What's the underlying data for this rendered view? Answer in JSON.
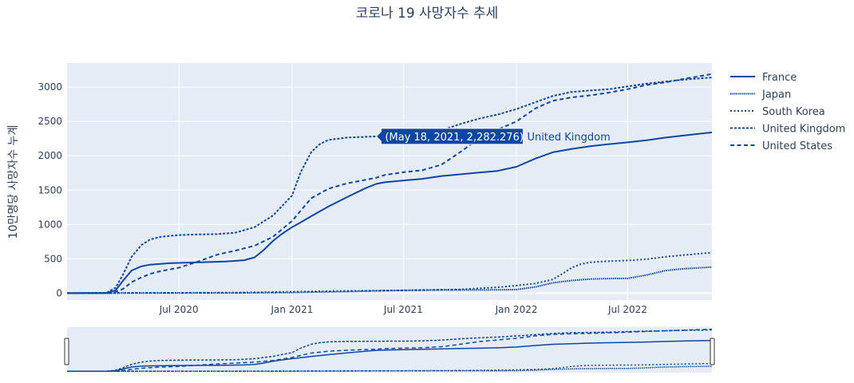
{
  "chart_data": {
    "type": "line",
    "title": "코로나 19 사망자수 추세",
    "ylabel": "10만명당 사망자수 누계",
    "xlabel": "",
    "xlim": [
      "2020-01-01",
      "2022-11-15"
    ],
    "ylim": [
      -100,
      3350
    ],
    "x_ticks": [
      {
        "date": "2020-07-01",
        "label": "Jul 2020"
      },
      {
        "date": "2021-01-01",
        "label": "Jan 2021"
      },
      {
        "date": "2021-07-01",
        "label": "Jul 2021"
      },
      {
        "date": "2022-01-01",
        "label": "Jan 2022"
      },
      {
        "date": "2022-07-01",
        "label": "Jul 2022"
      }
    ],
    "y_ticks": [
      0,
      500,
      1000,
      1500,
      2000,
      2500,
      3000
    ],
    "grid": true,
    "legend_position": "right",
    "line_color": "#0d47a1",
    "plot_bg": "#e5ecf6",
    "series": [
      {
        "name": "France",
        "dash": "solid",
        "points": [
          [
            "2020-01-01",
            0
          ],
          [
            "2020-03-05",
            2
          ],
          [
            "2020-03-20",
            40
          ],
          [
            "2020-04-01",
            180
          ],
          [
            "2020-04-15",
            330
          ],
          [
            "2020-05-01",
            390
          ],
          [
            "2020-05-15",
            415
          ],
          [
            "2020-06-15",
            435
          ],
          [
            "2020-08-01",
            448
          ],
          [
            "2020-09-15",
            460
          ],
          [
            "2020-10-15",
            480
          ],
          [
            "2020-11-01",
            520
          ],
          [
            "2020-11-15",
            620
          ],
          [
            "2020-12-01",
            760
          ],
          [
            "2020-12-15",
            860
          ],
          [
            "2021-01-01",
            960
          ],
          [
            "2021-01-15",
            1030
          ],
          [
            "2021-02-01",
            1120
          ],
          [
            "2021-03-01",
            1260
          ],
          [
            "2021-04-01",
            1400
          ],
          [
            "2021-05-01",
            1530
          ],
          [
            "2021-05-18",
            1590
          ],
          [
            "2021-06-01",
            1615
          ],
          [
            "2021-07-01",
            1640
          ],
          [
            "2021-08-01",
            1665
          ],
          [
            "2021-09-01",
            1705
          ],
          [
            "2021-10-01",
            1730
          ],
          [
            "2021-11-01",
            1755
          ],
          [
            "2021-12-01",
            1780
          ],
          [
            "2022-01-01",
            1840
          ],
          [
            "2022-02-01",
            1960
          ],
          [
            "2022-03-01",
            2050
          ],
          [
            "2022-04-01",
            2100
          ],
          [
            "2022-05-01",
            2140
          ],
          [
            "2022-06-01",
            2170
          ],
          [
            "2022-07-01",
            2195
          ],
          [
            "2022-08-01",
            2225
          ],
          [
            "2022-09-01",
            2265
          ],
          [
            "2022-10-01",
            2295
          ],
          [
            "2022-11-15",
            2340
          ]
        ]
      },
      {
        "name": "Japan",
        "dash": "dense-dot",
        "points": [
          [
            "2020-01-01",
            0
          ],
          [
            "2020-04-01",
            1
          ],
          [
            "2020-07-01",
            2
          ],
          [
            "2020-10-01",
            3
          ],
          [
            "2021-01-01",
            8
          ],
          [
            "2021-02-01",
            15
          ],
          [
            "2021-04-01",
            22
          ],
          [
            "2021-05-18",
            34
          ],
          [
            "2021-07-01",
            40
          ],
          [
            "2021-09-01",
            46
          ],
          [
            "2021-12-01",
            48
          ],
          [
            "2022-01-01",
            52
          ],
          [
            "2022-02-01",
            90
          ],
          [
            "2022-03-01",
            150
          ],
          [
            "2022-04-01",
            185
          ],
          [
            "2022-05-01",
            205
          ],
          [
            "2022-06-01",
            212
          ],
          [
            "2022-07-01",
            215
          ],
          [
            "2022-08-01",
            265
          ],
          [
            "2022-09-01",
            330
          ],
          [
            "2022-10-01",
            355
          ],
          [
            "2022-11-15",
            380
          ]
        ]
      },
      {
        "name": "South Korea",
        "dash": "dot",
        "points": [
          [
            "2020-01-01",
            0
          ],
          [
            "2020-04-01",
            3
          ],
          [
            "2020-07-01",
            5
          ],
          [
            "2020-10-01",
            8
          ],
          [
            "2021-01-01",
            20
          ],
          [
            "2021-04-01",
            33
          ],
          [
            "2021-07-01",
            40
          ],
          [
            "2021-10-01",
            55
          ],
          [
            "2021-12-01",
            85
          ],
          [
            "2022-01-01",
            110
          ],
          [
            "2022-02-01",
            140
          ],
          [
            "2022-03-01",
            200
          ],
          [
            "2022-03-20",
            300
          ],
          [
            "2022-04-01",
            370
          ],
          [
            "2022-04-15",
            420
          ],
          [
            "2022-05-01",
            450
          ],
          [
            "2022-06-01",
            466
          ],
          [
            "2022-07-01",
            476
          ],
          [
            "2022-08-01",
            495
          ],
          [
            "2022-09-01",
            530
          ],
          [
            "2022-10-01",
            555
          ],
          [
            "2022-11-15",
            590
          ]
        ]
      },
      {
        "name": "United Kingdom",
        "dash": "dash-dot",
        "points": [
          [
            "2020-01-01",
            0
          ],
          [
            "2020-03-05",
            3
          ],
          [
            "2020-03-20",
            80
          ],
          [
            "2020-04-01",
            270
          ],
          [
            "2020-04-15",
            530
          ],
          [
            "2020-05-01",
            700
          ],
          [
            "2020-05-15",
            780
          ],
          [
            "2020-06-01",
            820
          ],
          [
            "2020-07-01",
            845
          ],
          [
            "2020-08-01",
            855
          ],
          [
            "2020-09-01",
            860
          ],
          [
            "2020-10-01",
            880
          ],
          [
            "2020-11-01",
            960
          ],
          [
            "2020-12-01",
            1130
          ],
          [
            "2021-01-01",
            1420
          ],
          [
            "2021-01-15",
            1760
          ],
          [
            "2021-02-01",
            2050
          ],
          [
            "2021-02-15",
            2170
          ],
          [
            "2021-03-01",
            2230
          ],
          [
            "2021-04-01",
            2265
          ],
          [
            "2021-05-18",
            2282.276
          ],
          [
            "2021-07-01",
            2292
          ],
          [
            "2021-08-01",
            2310
          ],
          [
            "2021-09-01",
            2370
          ],
          [
            "2021-10-01",
            2460
          ],
          [
            "2021-11-01",
            2540
          ],
          [
            "2021-12-01",
            2600
          ],
          [
            "2022-01-01",
            2680
          ],
          [
            "2022-02-01",
            2780
          ],
          [
            "2022-03-01",
            2870
          ],
          [
            "2022-04-01",
            2930
          ],
          [
            "2022-05-01",
            2950
          ],
          [
            "2022-06-01",
            2970
          ],
          [
            "2022-07-01",
            3010
          ],
          [
            "2022-08-01",
            3050
          ],
          [
            "2022-09-01",
            3080
          ],
          [
            "2022-10-01",
            3110
          ],
          [
            "2022-11-15",
            3140
          ]
        ]
      },
      {
        "name": "United States",
        "dash": "dash",
        "points": [
          [
            "2020-01-01",
            0
          ],
          [
            "2020-03-15",
            2
          ],
          [
            "2020-04-01",
            60
          ],
          [
            "2020-04-15",
            160
          ],
          [
            "2020-05-01",
            230
          ],
          [
            "2020-05-15",
            280
          ],
          [
            "2020-06-01",
            320
          ],
          [
            "2020-07-01",
            370
          ],
          [
            "2020-08-01",
            460
          ],
          [
            "2020-09-01",
            560
          ],
          [
            "2020-10-01",
            620
          ],
          [
            "2020-11-01",
            690
          ],
          [
            "2020-12-01",
            820
          ],
          [
            "2021-01-01",
            1050
          ],
          [
            "2021-01-15",
            1200
          ],
          [
            "2021-02-01",
            1380
          ],
          [
            "2021-03-01",
            1520
          ],
          [
            "2021-04-01",
            1600
          ],
          [
            "2021-05-18",
            1680
          ],
          [
            "2021-06-01",
            1720
          ],
          [
            "2021-07-01",
            1760
          ],
          [
            "2021-08-01",
            1790
          ],
          [
            "2021-09-01",
            1870
          ],
          [
            "2021-10-01",
            2050
          ],
          [
            "2021-11-01",
            2250
          ],
          [
            "2021-12-01",
            2380
          ],
          [
            "2022-01-01",
            2500
          ],
          [
            "2022-02-01",
            2690
          ],
          [
            "2022-03-01",
            2800
          ],
          [
            "2022-04-01",
            2850
          ],
          [
            "2022-05-01",
            2880
          ],
          [
            "2022-06-01",
            2920
          ],
          [
            "2022-07-01",
            2970
          ],
          [
            "2022-08-01",
            3030
          ],
          [
            "2022-09-01",
            3070
          ],
          [
            "2022-10-01",
            3120
          ],
          [
            "2022-11-15",
            3190
          ]
        ]
      }
    ],
    "hover": {
      "series": "United Kingdom",
      "date": "2021-05-18",
      "value": 2282.276,
      "text": "(May 18, 2021, 2,282.276)",
      "name_text": "United Kingdom"
    }
  }
}
